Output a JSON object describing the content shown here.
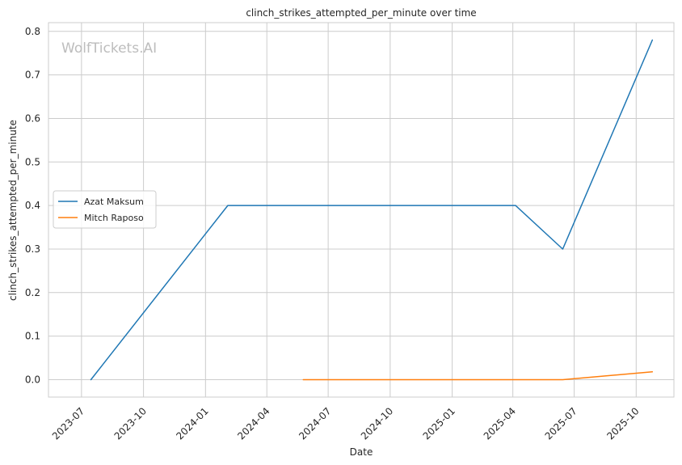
{
  "chart_data": {
    "type": "line",
    "title": "clinch_strikes_attempted_per_minute over time",
    "xlabel": "Date",
    "ylabel": "clinch_strikes_attempted_per_minute",
    "watermark": "WolfTickets.AI",
    "x_ticks": [
      "2023-07",
      "2023-10",
      "2024-01",
      "2024-04",
      "2024-07",
      "2024-10",
      "2025-01",
      "2025-04",
      "2025-07",
      "2025-10"
    ],
    "y_ticks": [
      "0.0",
      "0.1",
      "0.2",
      "0.3",
      "0.4",
      "0.5",
      "0.6",
      "0.7",
      "0.8"
    ],
    "xlim": [
      "2023-05-13",
      "2025-11-26"
    ],
    "ylim": [
      -0.04,
      0.82
    ],
    "grid": true,
    "legend_position": "center-left",
    "series": [
      {
        "name": "Azat Maksum",
        "color": "#1f77b4",
        "points": [
          {
            "x": "2023-07-15",
            "y": 0.0
          },
          {
            "x": "2024-02-03",
            "y": 0.4
          },
          {
            "x": "2025-04-05",
            "y": 0.4
          },
          {
            "x": "2025-06-14",
            "y": 0.3
          },
          {
            "x": "2025-10-25",
            "y": 0.78
          }
        ]
      },
      {
        "name": "Mitch Raposo",
        "color": "#ff7f0e",
        "points": [
          {
            "x": "2024-05-25",
            "y": 0.0
          },
          {
            "x": "2025-06-14",
            "y": 0.0
          },
          {
            "x": "2025-10-25",
            "y": 0.018
          }
        ]
      }
    ]
  }
}
